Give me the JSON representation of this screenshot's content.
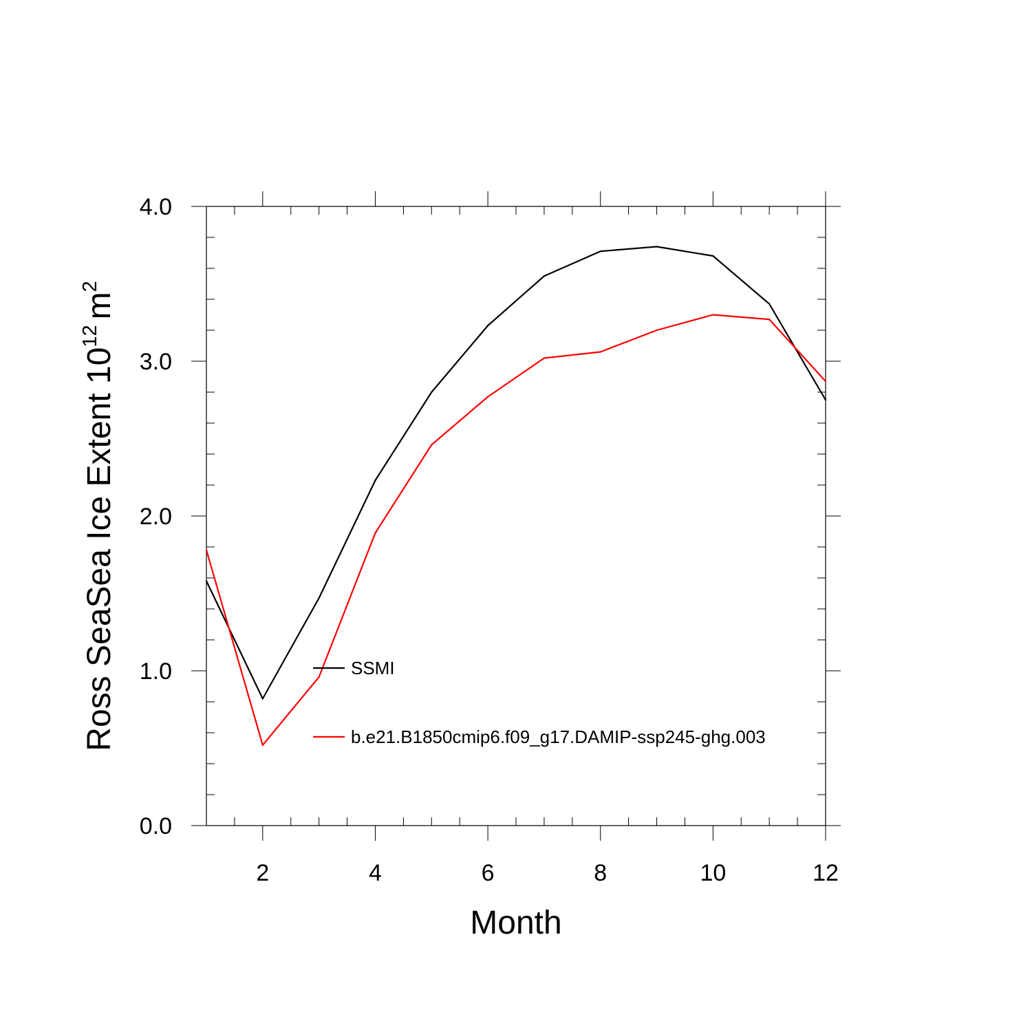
{
  "chart_data": {
    "type": "line",
    "title": "",
    "xlabel": "Month",
    "ylabel": "Ross SeaSea Ice Extent 10",
    "ylabel_exponent": "12",
    "ylabel_unit": "m",
    "ylabel_unit_exponent": "2",
    "xlim": [
      1,
      12
    ],
    "ylim": [
      0.0,
      4.0
    ],
    "x_ticks": [
      2,
      4,
      6,
      8,
      10,
      12
    ],
    "x_tick_labels": [
      "2",
      "4",
      "6",
      "8",
      "10",
      "12"
    ],
    "y_ticks": [
      0.0,
      1.0,
      2.0,
      3.0,
      4.0
    ],
    "y_tick_labels": [
      "0.0",
      "1.0",
      "2.0",
      "3.0",
      "4.0"
    ],
    "grid": false,
    "legend_position": "center",
    "x": [
      1,
      2,
      3,
      4,
      5,
      6,
      7,
      8,
      9,
      10,
      11,
      12
    ],
    "series": [
      {
        "name": "SSMI",
        "color": "#000000",
        "values": [
          1.58,
          0.82,
          1.47,
          2.23,
          2.8,
          3.23,
          3.55,
          3.71,
          3.74,
          3.68,
          3.37,
          2.75
        ]
      },
      {
        "name": "b.e21.B1850cmip6.f09_g17.DAMIP-ssp245-ghg.003",
        "color": "#ff0000",
        "values": [
          1.78,
          0.52,
          0.96,
          1.89,
          2.46,
          2.77,
          3.02,
          3.06,
          3.2,
          3.3,
          3.27,
          2.87
        ]
      }
    ]
  }
}
